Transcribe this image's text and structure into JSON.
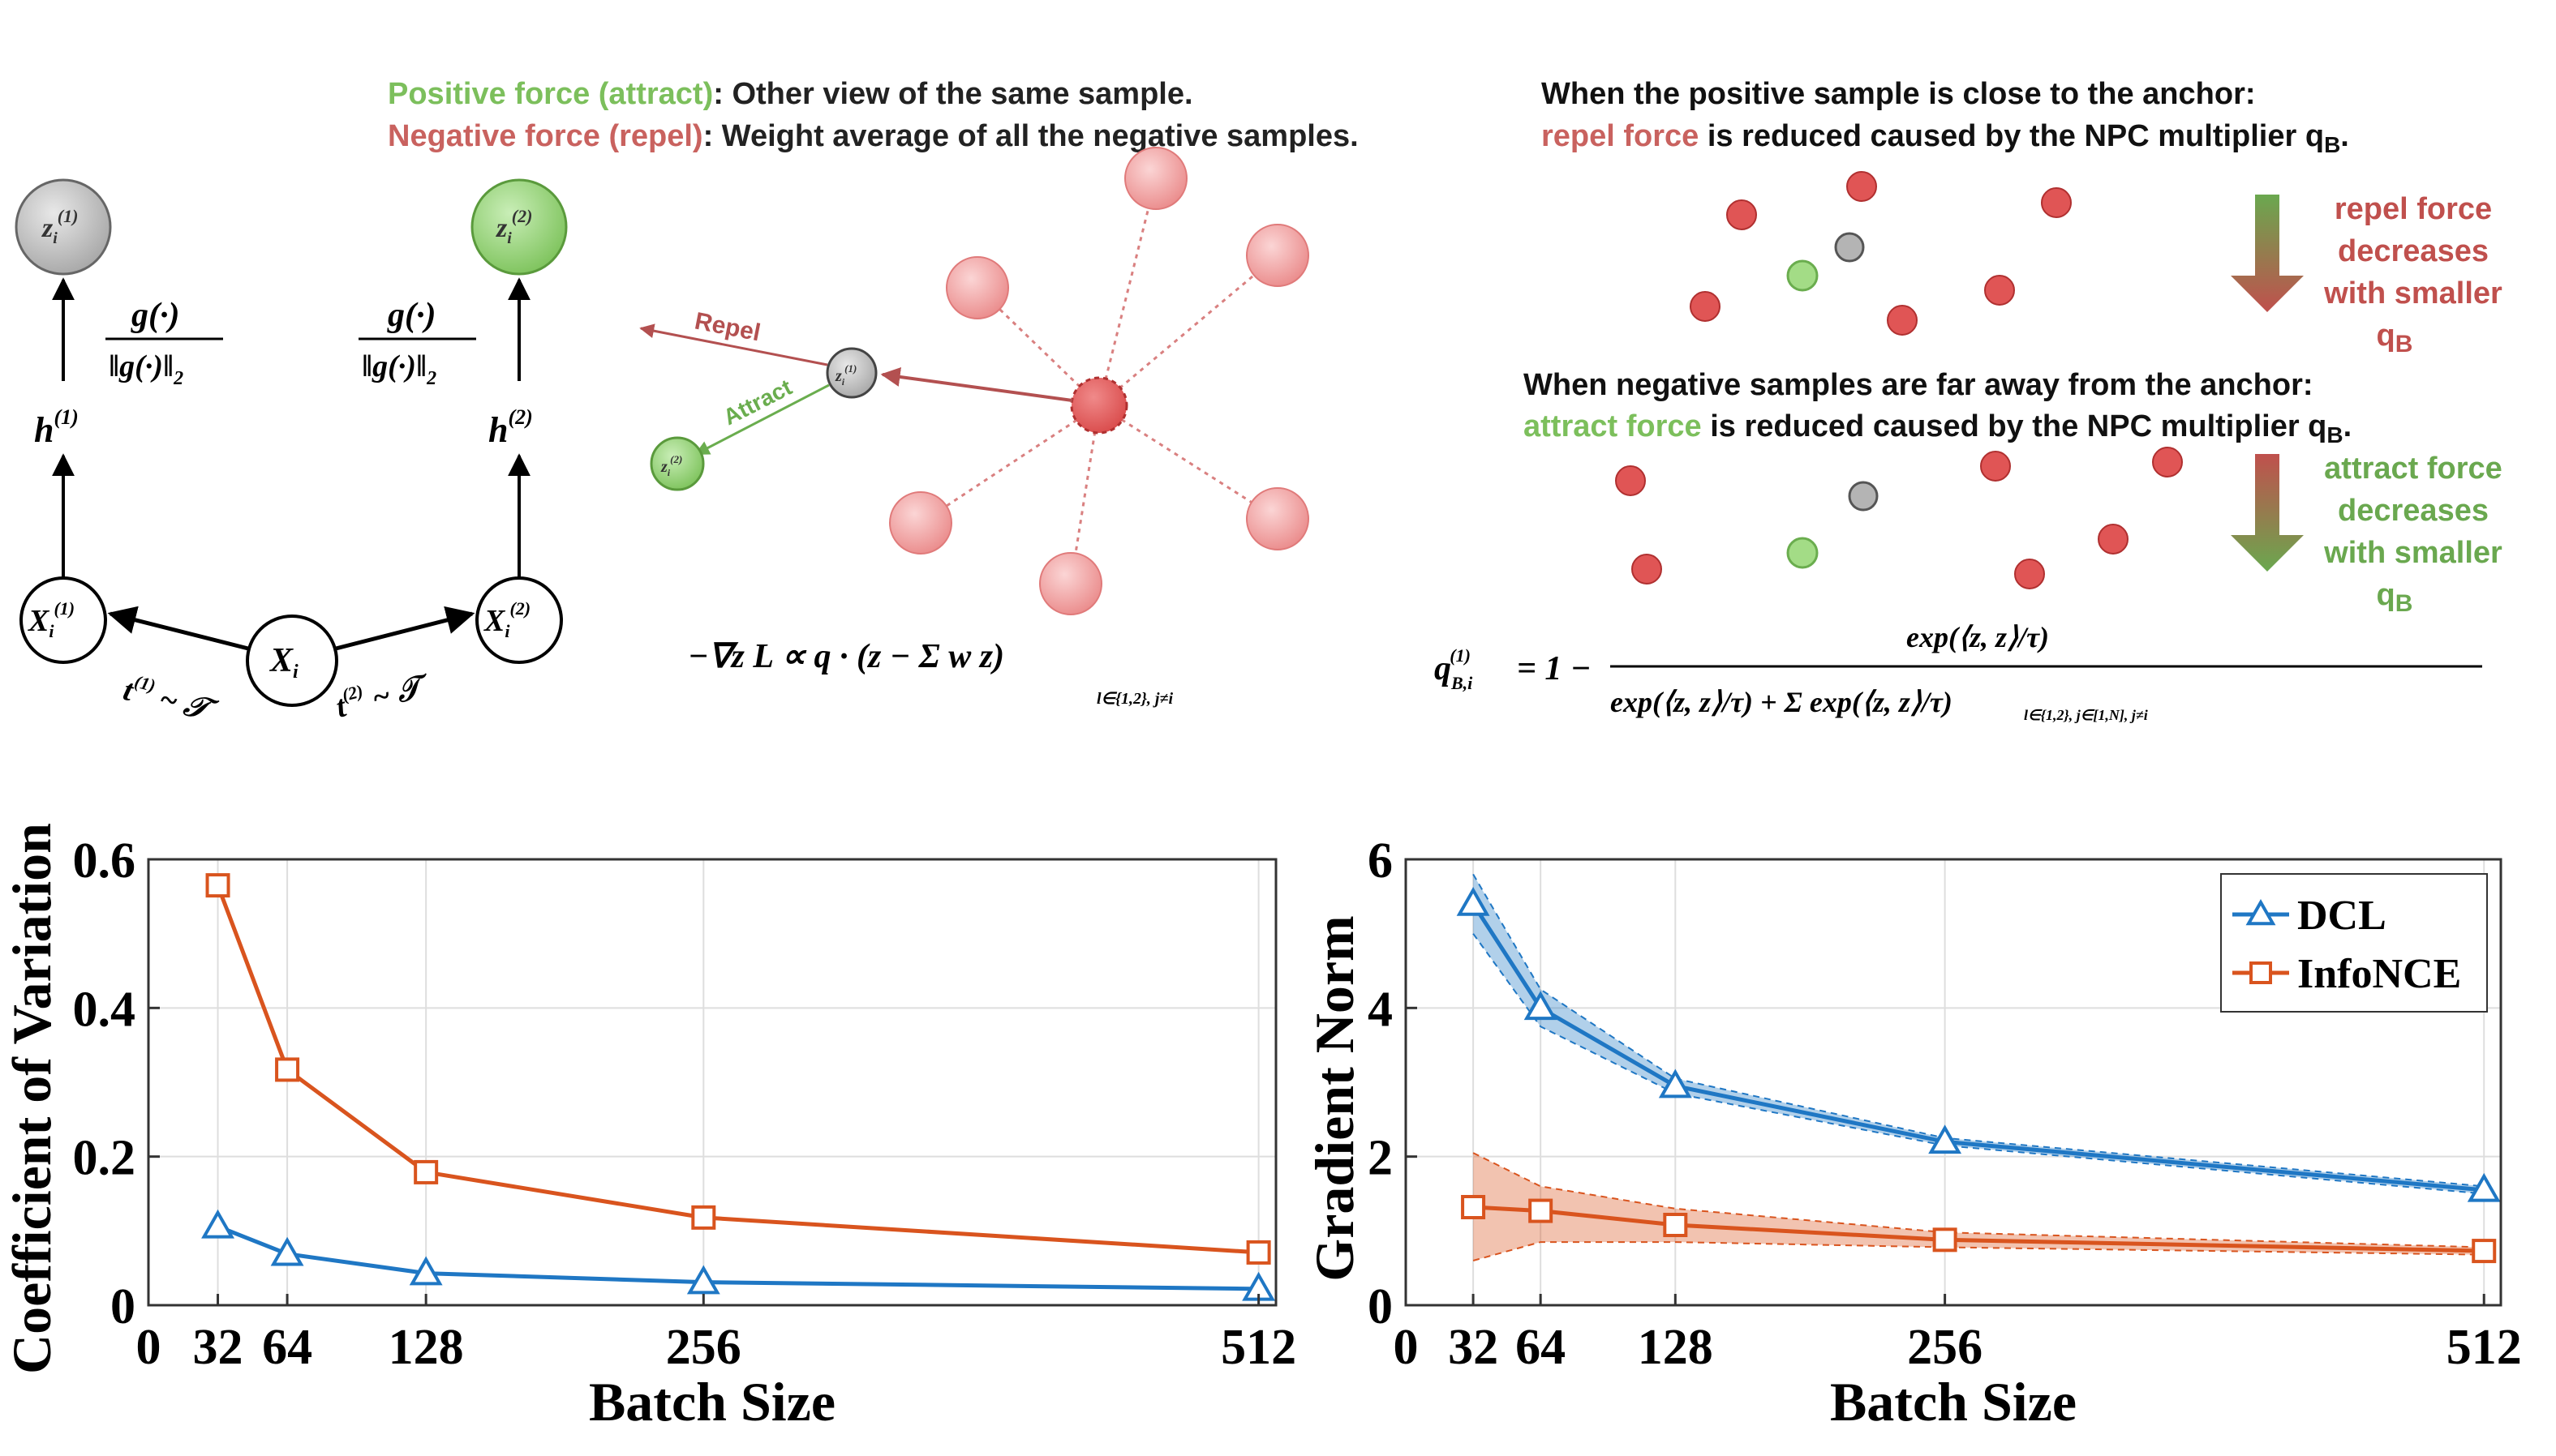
{
  "colors": {
    "green": "#6aad4e",
    "red": "#c45a5a",
    "node_red": "#ee8e8e",
    "node_gray": "#b8b8b8",
    "dcl": "#1f77c4",
    "infonce": "#d9541e"
  },
  "top": {
    "pos_label": "Positive force (attract)",
    "pos_text": ": Other view of the same sample.",
    "neg_label": "Negative force (repel)",
    "neg_text": ": Weight average of all the negative samples.",
    "close_title": "When the positive sample is close to the anchor:",
    "repel_label": "repel force",
    "repel_text": " is reduced caused by the NPC multiplier q",
    "far_title": "When negative samples are far away from the anchor:",
    "attract_label": "attract force",
    "attract_text": " is reduced caused by the NPC multiplier q",
    "sub_b": "B",
    "repel_note": [
      "repel force",
      "decreases",
      "with smaller",
      "q"
    ],
    "attract_note": [
      "attract force",
      "decreases",
      "with smaller",
      "q"
    ]
  },
  "diagram": {
    "z1": "z",
    "z2": "z",
    "sup1": "(1)",
    "sup2": "(2)",
    "sub_i": "i",
    "g_num": "g(·)",
    "g_den": "‖g(·)‖",
    "g_sub": "2",
    "h": "h",
    "x": "X",
    "t1": "t",
    "t2": "t",
    "tilde_T": "~ 𝒯",
    "repel": "Repel",
    "attract": "Attract"
  },
  "formulas": {
    "gradient": "−∇z L ∝ q · (z − Σ w z)",
    "gradient_sub": "l∈{1,2}, j≠i",
    "npc_lhs": "q",
    "npc_eq": "= 1 −",
    "npc_num": "exp(⟨z, z⟩/τ)",
    "npc_den": "exp(⟨z, z⟩/τ) + Σ exp(⟨z, z⟩/τ)",
    "npc_den_sub": "l∈{1,2}, j∈[1,N], j≠i"
  },
  "chart_data": [
    {
      "type": "line",
      "xlabel": "Batch Size",
      "ylabel": "Coefficient of Variation",
      "x": [
        32,
        64,
        128,
        256,
        512
      ],
      "xticks": [
        0,
        32,
        64,
        128,
        256,
        512
      ],
      "xlim": [
        0,
        520
      ],
      "ylim": [
        0,
        0.6
      ],
      "yticks": [
        0,
        0.2,
        0.4,
        0.6
      ],
      "ytick_labels": [
        "0",
        "0.2",
        "0.4",
        "0.6"
      ],
      "grid": true,
      "series": [
        {
          "name": "DCL",
          "marker": "triangle",
          "values": [
            0.106,
            0.069,
            0.043,
            0.031,
            0.022
          ]
        },
        {
          "name": "InfoNCE",
          "marker": "square",
          "values": [
            0.565,
            0.317,
            0.179,
            0.118,
            0.071
          ]
        }
      ]
    },
    {
      "type": "line",
      "xlabel": "Batch Size",
      "ylabel": "Gradient Norm",
      "x": [
        32,
        64,
        128,
        256,
        512
      ],
      "xticks": [
        0,
        32,
        64,
        128,
        256,
        512
      ],
      "xlim": [
        0,
        520
      ],
      "ylim": [
        0,
        6
      ],
      "yticks": [
        0,
        2,
        4,
        6
      ],
      "ytick_labels": [
        "0",
        "2",
        "4",
        "6"
      ],
      "grid": true,
      "legend_position": "top-right",
      "legend": [
        "DCL",
        "InfoNCE"
      ],
      "series": [
        {
          "name": "DCL",
          "marker": "triangle",
          "values": [
            5.4,
            4.0,
            2.95,
            2.2,
            1.55
          ],
          "lower": [
            5.0,
            3.75,
            2.85,
            2.15,
            1.5
          ],
          "upper": [
            5.8,
            4.25,
            3.05,
            2.25,
            1.6
          ]
        },
        {
          "name": "InfoNCE",
          "marker": "square",
          "values": [
            1.32,
            1.27,
            1.08,
            0.88,
            0.73
          ],
          "lower": [
            0.6,
            0.85,
            0.85,
            0.78,
            0.68
          ],
          "upper": [
            2.05,
            1.6,
            1.3,
            0.98,
            0.78
          ]
        }
      ]
    }
  ]
}
